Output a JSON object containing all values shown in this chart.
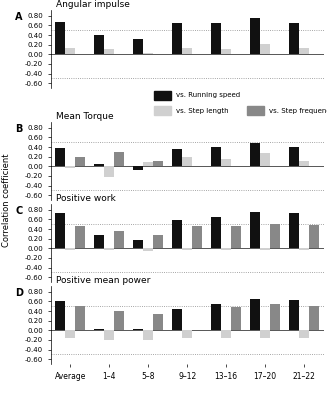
{
  "panels": [
    {
      "label": "A",
      "title": "Angular impulse",
      "black": [
        0.68,
        0.4,
        0.31,
        0.64,
        0.65,
        0.76,
        0.66
      ],
      "light": [
        0.14,
        0.1,
        0.03,
        0.13,
        0.12,
        0.22,
        0.13
      ],
      "dark": [
        0.0,
        0.0,
        0.0,
        0.0,
        0.0,
        0.0,
        0.0
      ],
      "show_dark": false
    },
    {
      "label": "B",
      "title": "Mean Torque",
      "black": [
        0.38,
        0.04,
        -0.08,
        0.35,
        0.4,
        0.48,
        0.4
      ],
      "light": [
        -0.04,
        -0.22,
        0.09,
        0.2,
        0.16,
        0.27,
        0.12
      ],
      "dark": [
        0.2,
        0.3,
        0.11,
        0.0,
        0.0,
        0.0,
        0.0
      ],
      "show_dark": true
    },
    {
      "label": "C",
      "title": "Positive work",
      "black": [
        0.74,
        0.27,
        0.17,
        0.59,
        0.65,
        0.76,
        0.74
      ],
      "light": [
        -0.04,
        -0.04,
        -0.05,
        -0.04,
        -0.04,
        -0.04,
        -0.04
      ],
      "dark": [
        0.46,
        0.36,
        0.28,
        0.46,
        0.47,
        0.5,
        0.49
      ],
      "show_dark": true
    },
    {
      "label": "D",
      "title": "Positive mean power",
      "black": [
        0.61,
        0.02,
        0.03,
        0.44,
        0.55,
        0.64,
        0.63
      ],
      "light": [
        -0.16,
        -0.2,
        -0.21,
        -0.16,
        -0.16,
        -0.16,
        -0.16
      ],
      "dark": [
        0.5,
        0.4,
        0.33,
        0.0,
        0.49,
        0.54,
        0.51
      ],
      "show_dark": true
    }
  ],
  "categories": [
    "Average",
    "1–4",
    "5–8",
    "9–12",
    "13–16",
    "17–20",
    "21–22"
  ],
  "ylim": [
    -0.7,
    0.92
  ],
  "yticks": [
    -0.6,
    -0.4,
    -0.2,
    0.0,
    0.2,
    0.4,
    0.6,
    0.8
  ],
  "ytick_labels": [
    "-0.60",
    "-0.40",
    "-0.20",
    "0.00",
    "0.20",
    "0.40",
    "0.60",
    "0.80"
  ],
  "hlines": [
    0.5,
    -0.5
  ],
  "color_black": "#111111",
  "color_light": "#d0d0d0",
  "color_dark": "#888888",
  "legend_labels": [
    "vs. Running speed",
    "vs. Step length",
    "vs. Step frequency"
  ],
  "ylabel": "Correlation coefficient"
}
